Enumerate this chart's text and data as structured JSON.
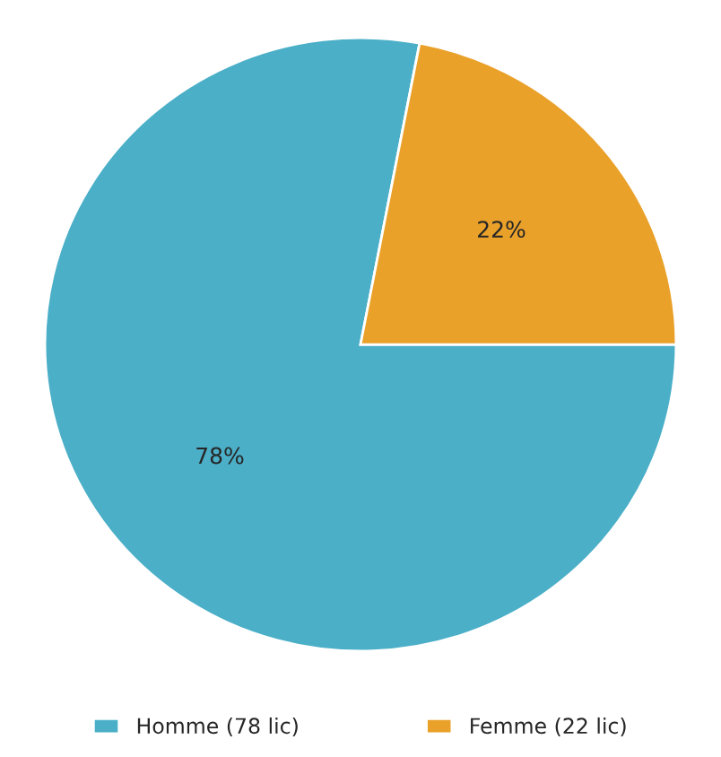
{
  "chart_data": {
    "type": "pie",
    "categories": [
      "Homme (78 lic)",
      "Femme (22 lic)"
    ],
    "values": [
      78,
      22
    ],
    "colors": [
      "#4bafc8",
      "#e9a12a"
    ],
    "value_labels": [
      "78%",
      "22%"
    ],
    "legend": "bottom"
  }
}
